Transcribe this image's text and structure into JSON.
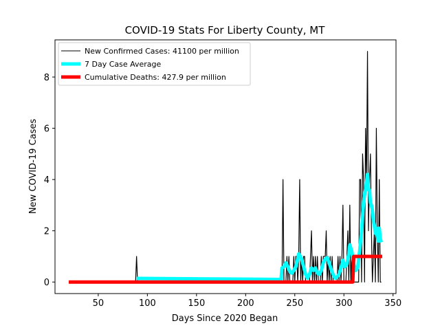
{
  "chart_data": {
    "type": "line",
    "title": "COVID-19 Stats For Liberty County, MT",
    "xlabel": "Days Since 2020 Began",
    "ylabel": "New COVID-19 Cases",
    "xlim": [
      6,
      353
    ],
    "ylim": [
      -0.45,
      9.45
    ],
    "xticks": [
      50,
      100,
      150,
      200,
      250,
      300,
      350
    ],
    "yticks": [
      0,
      2,
      4,
      6,
      8
    ],
    "grid": false,
    "legend_position": "top-left",
    "series": [
      {
        "name": "New Confirmed Cases: 41100 per million",
        "color": "#000000",
        "points": [
          [
            20,
            0
          ],
          [
            88,
            0
          ],
          [
            89,
            1
          ],
          [
            90,
            0
          ],
          [
            237,
            0
          ],
          [
            238,
            4
          ],
          [
            239,
            0
          ],
          [
            241,
            0
          ],
          [
            242,
            1
          ],
          [
            243,
            0
          ],
          [
            244,
            1
          ],
          [
            245,
            0
          ],
          [
            248,
            0
          ],
          [
            249,
            1
          ],
          [
            250,
            0
          ],
          [
            251,
            1
          ],
          [
            252,
            1
          ],
          [
            253,
            0
          ],
          [
            254,
            1
          ],
          [
            255,
            4
          ],
          [
            256,
            0
          ],
          [
            257,
            1
          ],
          [
            258,
            0
          ],
          [
            259,
            1
          ],
          [
            260,
            1
          ],
          [
            261,
            0
          ],
          [
            265,
            0
          ],
          [
            266,
            1
          ],
          [
            267,
            2
          ],
          [
            268,
            0
          ],
          [
            269,
            1
          ],
          [
            270,
            0
          ],
          [
            271,
            1
          ],
          [
            272,
            0
          ],
          [
            273,
            1
          ],
          [
            274,
            0
          ],
          [
            276,
            0
          ],
          [
            277,
            1
          ],
          [
            278,
            0
          ],
          [
            279,
            1
          ],
          [
            280,
            1
          ],
          [
            281,
            1
          ],
          [
            282,
            2
          ],
          [
            283,
            0
          ],
          [
            284,
            1
          ],
          [
            285,
            0
          ],
          [
            286,
            1
          ],
          [
            287,
            0
          ],
          [
            288,
            1
          ],
          [
            289,
            0
          ],
          [
            293,
            0
          ],
          [
            294,
            1
          ],
          [
            295,
            0
          ],
          [
            296,
            1
          ],
          [
            297,
            0
          ],
          [
            298,
            1
          ],
          [
            299,
            3
          ],
          [
            300,
            0
          ],
          [
            302,
            0
          ],
          [
            303,
            1
          ],
          [
            304,
            2
          ],
          [
            305,
            0
          ],
          [
            306,
            3
          ],
          [
            307,
            0
          ],
          [
            308,
            1
          ],
          [
            309,
            1
          ],
          [
            310,
            0
          ],
          [
            315,
            0
          ],
          [
            316,
            4
          ],
          [
            317,
            4
          ],
          [
            318,
            0
          ],
          [
            319,
            5
          ],
          [
            320,
            4
          ],
          [
            321,
            0
          ],
          [
            322,
            6
          ],
          [
            323,
            4
          ],
          [
            324,
            9
          ],
          [
            325,
            2
          ],
          [
            326,
            4
          ],
          [
            327,
            5
          ],
          [
            328,
            2
          ],
          [
            329,
            0
          ],
          [
            330,
            1
          ],
          [
            331,
            2
          ],
          [
            332,
            0
          ],
          [
            333,
            6
          ],
          [
            334,
            2
          ],
          [
            335,
            0
          ],
          [
            336,
            4
          ],
          [
            337,
            0
          ],
          [
            338,
            0
          ]
        ]
      },
      {
        "name": "7 Day Case Average",
        "color": "#00ffff",
        "points": [
          [
            89,
            0.14
          ],
          [
            90,
            0.14
          ],
          [
            91,
            0.14
          ],
          [
            92,
            0.14
          ],
          [
            93,
            0.14
          ],
          [
            94,
            0.14
          ],
          [
            95,
            0.14
          ],
          [
            236,
            0.1
          ],
          [
            237,
            0.55
          ],
          [
            239,
            0.6
          ],
          [
            241,
            0.75
          ],
          [
            243,
            0.6
          ],
          [
            245,
            0.4
          ],
          [
            247,
            0.35
          ],
          [
            249,
            0.45
          ],
          [
            251,
            0.6
          ],
          [
            253,
            0.9
          ],
          [
            254,
            1.1
          ],
          [
            255,
            1.05
          ],
          [
            257,
            0.9
          ],
          [
            259,
            0.6
          ],
          [
            261,
            0.3
          ],
          [
            263,
            0.15
          ],
          [
            265,
            0.3
          ],
          [
            267,
            0.55
          ],
          [
            269,
            0.45
          ],
          [
            271,
            0.55
          ],
          [
            273,
            0.35
          ],
          [
            275,
            0.3
          ],
          [
            277,
            0.45
          ],
          [
            279,
            0.75
          ],
          [
            281,
            0.9
          ],
          [
            283,
            0.95
          ],
          [
            285,
            0.75
          ],
          [
            287,
            0.5
          ],
          [
            289,
            0.3
          ],
          [
            291,
            0.15
          ],
          [
            293,
            0.2
          ],
          [
            295,
            0.3
          ],
          [
            297,
            0.55
          ],
          [
            299,
            0.85
          ],
          [
            301,
            0.6
          ],
          [
            303,
            0.7
          ],
          [
            305,
            1.1
          ],
          [
            306,
            1.45
          ],
          [
            308,
            1.2
          ],
          [
            310,
            0.7
          ],
          [
            312,
            0.45
          ],
          [
            314,
            0.55
          ],
          [
            316,
            1.2
          ],
          [
            318,
            2.0
          ],
          [
            319,
            2.6
          ],
          [
            320,
            3.1
          ],
          [
            321,
            3.4
          ],
          [
            322,
            3.6
          ],
          [
            323,
            3.9
          ],
          [
            324,
            4.2
          ],
          [
            325,
            3.6
          ],
          [
            326,
            3.6
          ],
          [
            327,
            3.1
          ],
          [
            328,
            3.0
          ],
          [
            329,
            2.8
          ],
          [
            330,
            2.4
          ],
          [
            331,
            2.2
          ],
          [
            332,
            1.9
          ],
          [
            333,
            2.1
          ],
          [
            334,
            1.8
          ],
          [
            335,
            1.6
          ],
          [
            336,
            2.1
          ],
          [
            337,
            1.7
          ],
          [
            338,
            1.55
          ]
        ]
      },
      {
        "name": "Cumulative Deaths: 427.9 per million",
        "color": "#ff0000",
        "points": [
          [
            20,
            0
          ],
          [
            309,
            0
          ],
          [
            310,
            1
          ],
          [
            339,
            1
          ]
        ]
      }
    ]
  }
}
